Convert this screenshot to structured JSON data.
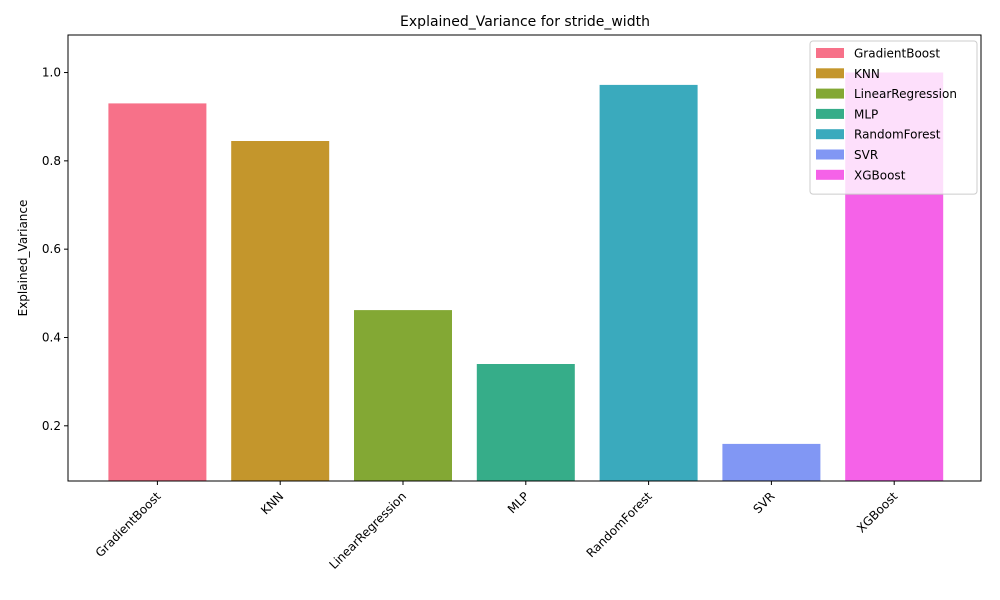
{
  "chart_data": {
    "type": "bar",
    "title": "Explained_Variance for stride_width",
    "xlabel": "",
    "ylabel": "Explained_Variance",
    "categories": [
      "GradientBoost",
      "KNN",
      "LinearRegression",
      "MLP",
      "RandomForest",
      "SVR",
      "XGBoost"
    ],
    "values": [
      0.93,
      0.845,
      0.462,
      0.34,
      0.972,
      0.159,
      1.0
    ],
    "colors": [
      "#f77189",
      "#c4962c",
      "#83a834",
      "#36ad89",
      "#3aaabd",
      "#8197f4",
      "#f562e8"
    ],
    "ylim": [
      0.075,
      1.085
    ],
    "yticks": [
      0.2,
      0.4,
      0.6,
      0.8,
      1.0
    ],
    "ytick_labels": [
      "0.2",
      "0.4",
      "0.6",
      "0.8",
      "1.0"
    ],
    "grid": false,
    "legend_position": "top-right"
  }
}
